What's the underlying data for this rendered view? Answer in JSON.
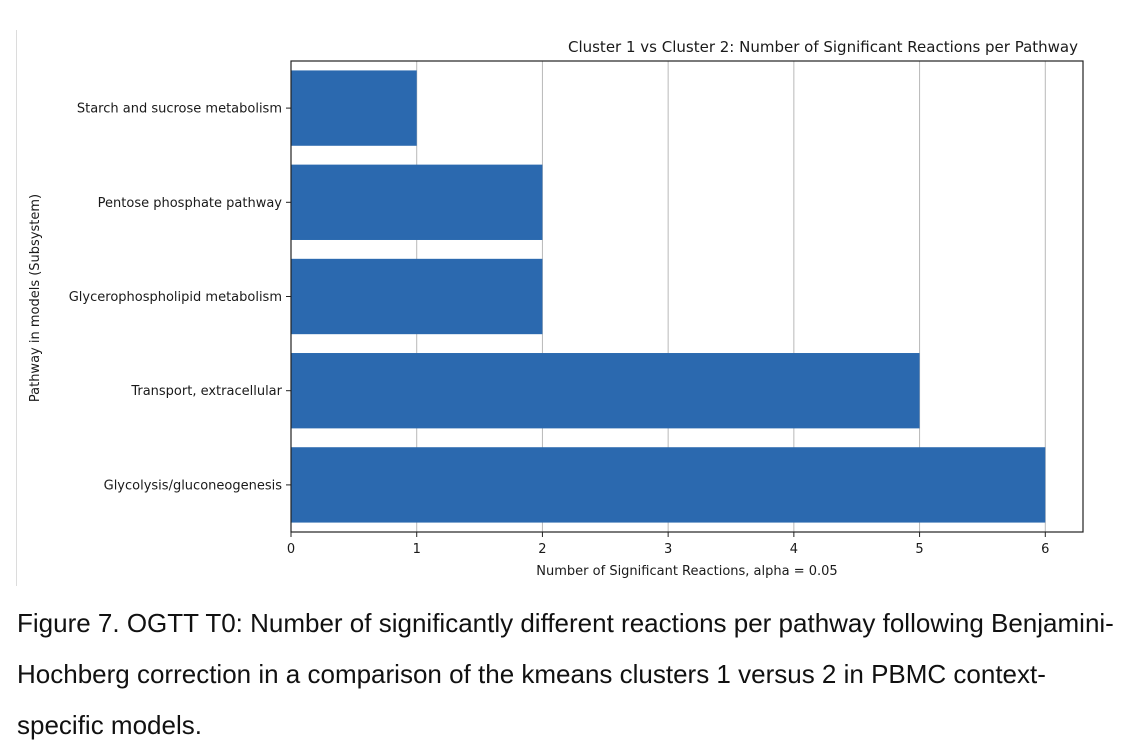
{
  "chart_data": {
    "type": "bar",
    "orientation": "horizontal",
    "title": "Cluster 1 vs Cluster 2: Number of Significant Reactions per Pathway",
    "xlabel": "Number of Significant Reactions, alpha = 0.05",
    "ylabel": "Pathway in models (Subsystem)",
    "categories": [
      "Glycolysis/gluconeogenesis",
      "Transport, extracellular",
      "Glycerophospholipid metabolism",
      "Pentose phosphate pathway",
      "Starch and sucrose metabolism"
    ],
    "values": [
      6,
      5,
      2,
      2,
      1
    ],
    "xlim": [
      0,
      6.3
    ],
    "xticks": [
      0,
      1,
      2,
      3,
      4,
      5,
      6
    ],
    "grid": "vertical",
    "bar_color": "#2b69af"
  },
  "caption": "Figure 7. OGTT T0: Number of significantly different reactions per pathway following Benjamini-Hochberg correction in a comparison of the kmeans clusters 1 versus 2 in PBMC context-specific models."
}
